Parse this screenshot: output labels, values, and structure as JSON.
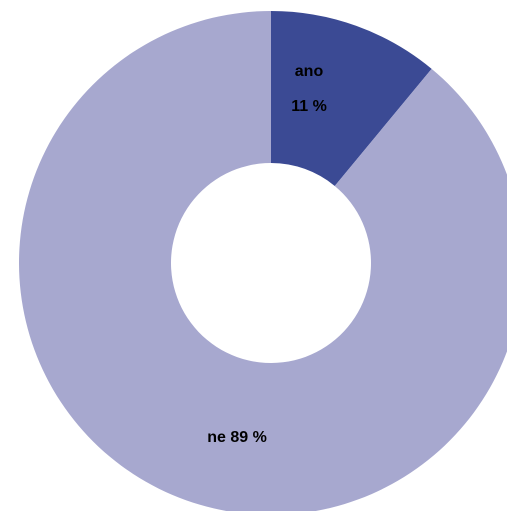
{
  "chart_data": {
    "type": "donut",
    "categories": [
      "ano",
      "ne"
    ],
    "values": [
      11,
      89
    ],
    "value_labels": [
      "11 %",
      "89 %"
    ],
    "colors": [
      "#3b4a94",
      "#a7a8cf"
    ]
  }
}
